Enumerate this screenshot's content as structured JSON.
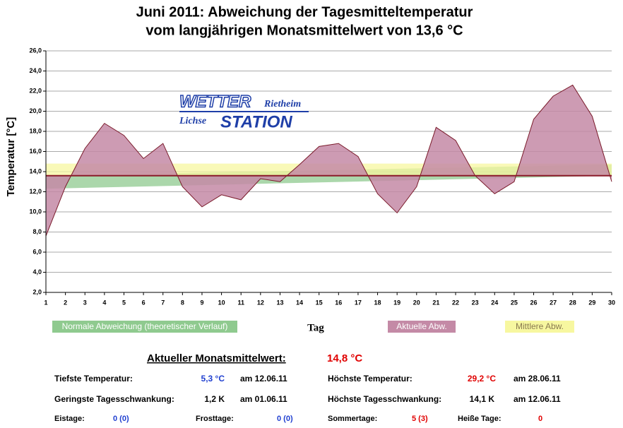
{
  "chart_data": {
    "type": "area",
    "title": [
      "Juni 2011: Abweichung der Tagesmitteltemperatur",
      "vom langjährigen Monatsmittelwert von 13,6 °C"
    ],
    "x_label": "Tag",
    "y_label": "Temperatur [°C]",
    "x": [
      1,
      2,
      3,
      4,
      5,
      6,
      7,
      8,
      9,
      10,
      11,
      12,
      13,
      14,
      15,
      16,
      17,
      18,
      19,
      20,
      21,
      22,
      23,
      24,
      25,
      26,
      27,
      28,
      29,
      30
    ],
    "xlim": [
      1,
      30
    ],
    "xticks": [
      1,
      2,
      3,
      4,
      5,
      6,
      7,
      8,
      9,
      10,
      11,
      12,
      13,
      14,
      15,
      16,
      17,
      18,
      19,
      20,
      21,
      22,
      23,
      24,
      25,
      26,
      27,
      28,
      29,
      30
    ],
    "ylim": [
      2,
      26
    ],
    "yticks": [
      {
        "value": 2,
        "label": "2,0"
      },
      {
        "value": 4,
        "label": "4,0"
      },
      {
        "value": 6,
        "label": "6,0"
      },
      {
        "value": 8,
        "label": "8,0"
      },
      {
        "value": 10,
        "label": "10,0"
      },
      {
        "value": 12,
        "label": "12,0"
      },
      {
        "value": 14,
        "label": "14,0"
      },
      {
        "value": 16,
        "label": "16,0"
      },
      {
        "value": 18,
        "label": "18,0"
      },
      {
        "value": 20,
        "label": "20,0"
      },
      {
        "value": 22,
        "label": "22,0"
      },
      {
        "value": 24,
        "label": "24,0"
      },
      {
        "value": 26,
        "label": "26,0"
      }
    ],
    "grid": true,
    "baseline": 13.6,
    "baseline_color": "#8b1a2a",
    "bands": [
      {
        "name": "Normale Abweichung (theoretischer Verlauf)",
        "color": "#8fca8f",
        "x": [
          1,
          30
        ],
        "lower": [
          12.3,
          13.6
        ],
        "upper": [
          13.6,
          14.7
        ]
      },
      {
        "name": "Mittlere Abw.",
        "color": "#f7f7a0",
        "x": [
          1,
          30
        ],
        "lower": [
          13.6,
          13.6
        ],
        "upper": [
          14.8,
          14.8
        ]
      }
    ],
    "series": [
      {
        "name": "Aktuelle Abw.",
        "color": "#c48aa6",
        "line_color": "#7a1a2a",
        "values": [
          7.6,
          12.5,
          16.3,
          18.8,
          17.6,
          15.3,
          16.8,
          12.5,
          10.5,
          11.7,
          11.2,
          13.3,
          13.0,
          14.7,
          16.5,
          16.8,
          15.5,
          11.8,
          9.9,
          12.5,
          18.4,
          17.1,
          13.6,
          11.8,
          13.0,
          19.2,
          21.5,
          22.6,
          19.5,
          13.0
        ]
      }
    ]
  },
  "logo": {
    "top": "WETTER",
    "place": "Rietheim",
    "name": "Lichse",
    "bottom": "STATION"
  },
  "stats": {
    "heading": "Aktueller Monatsmittelwert:",
    "mean": "14,8 °C",
    "left": [
      {
        "label": "Tiefste Temperatur:",
        "value": "5,3 °C",
        "date": "am 12.06.11"
      },
      {
        "label": "Geringste Tagesschwankung:",
        "value": "1,2 K",
        "date": "am 01.06.11"
      }
    ],
    "right": [
      {
        "label": "Höchste Temperatur:",
        "value": "29,2 °C",
        "date": "am 28.06.11"
      },
      {
        "label": "Höchste Tagesschwankung:",
        "value": "14,1 K",
        "date": "am 12.06.11"
      }
    ],
    "days": [
      {
        "label": "Eistage:",
        "value": "0 (0)"
      },
      {
        "label": "Frosttage:",
        "value": "0 (0)"
      },
      {
        "label": "Sommertage:",
        "value": "5 (3)"
      },
      {
        "label": "Heiße Tage:",
        "value": "0"
      }
    ]
  }
}
